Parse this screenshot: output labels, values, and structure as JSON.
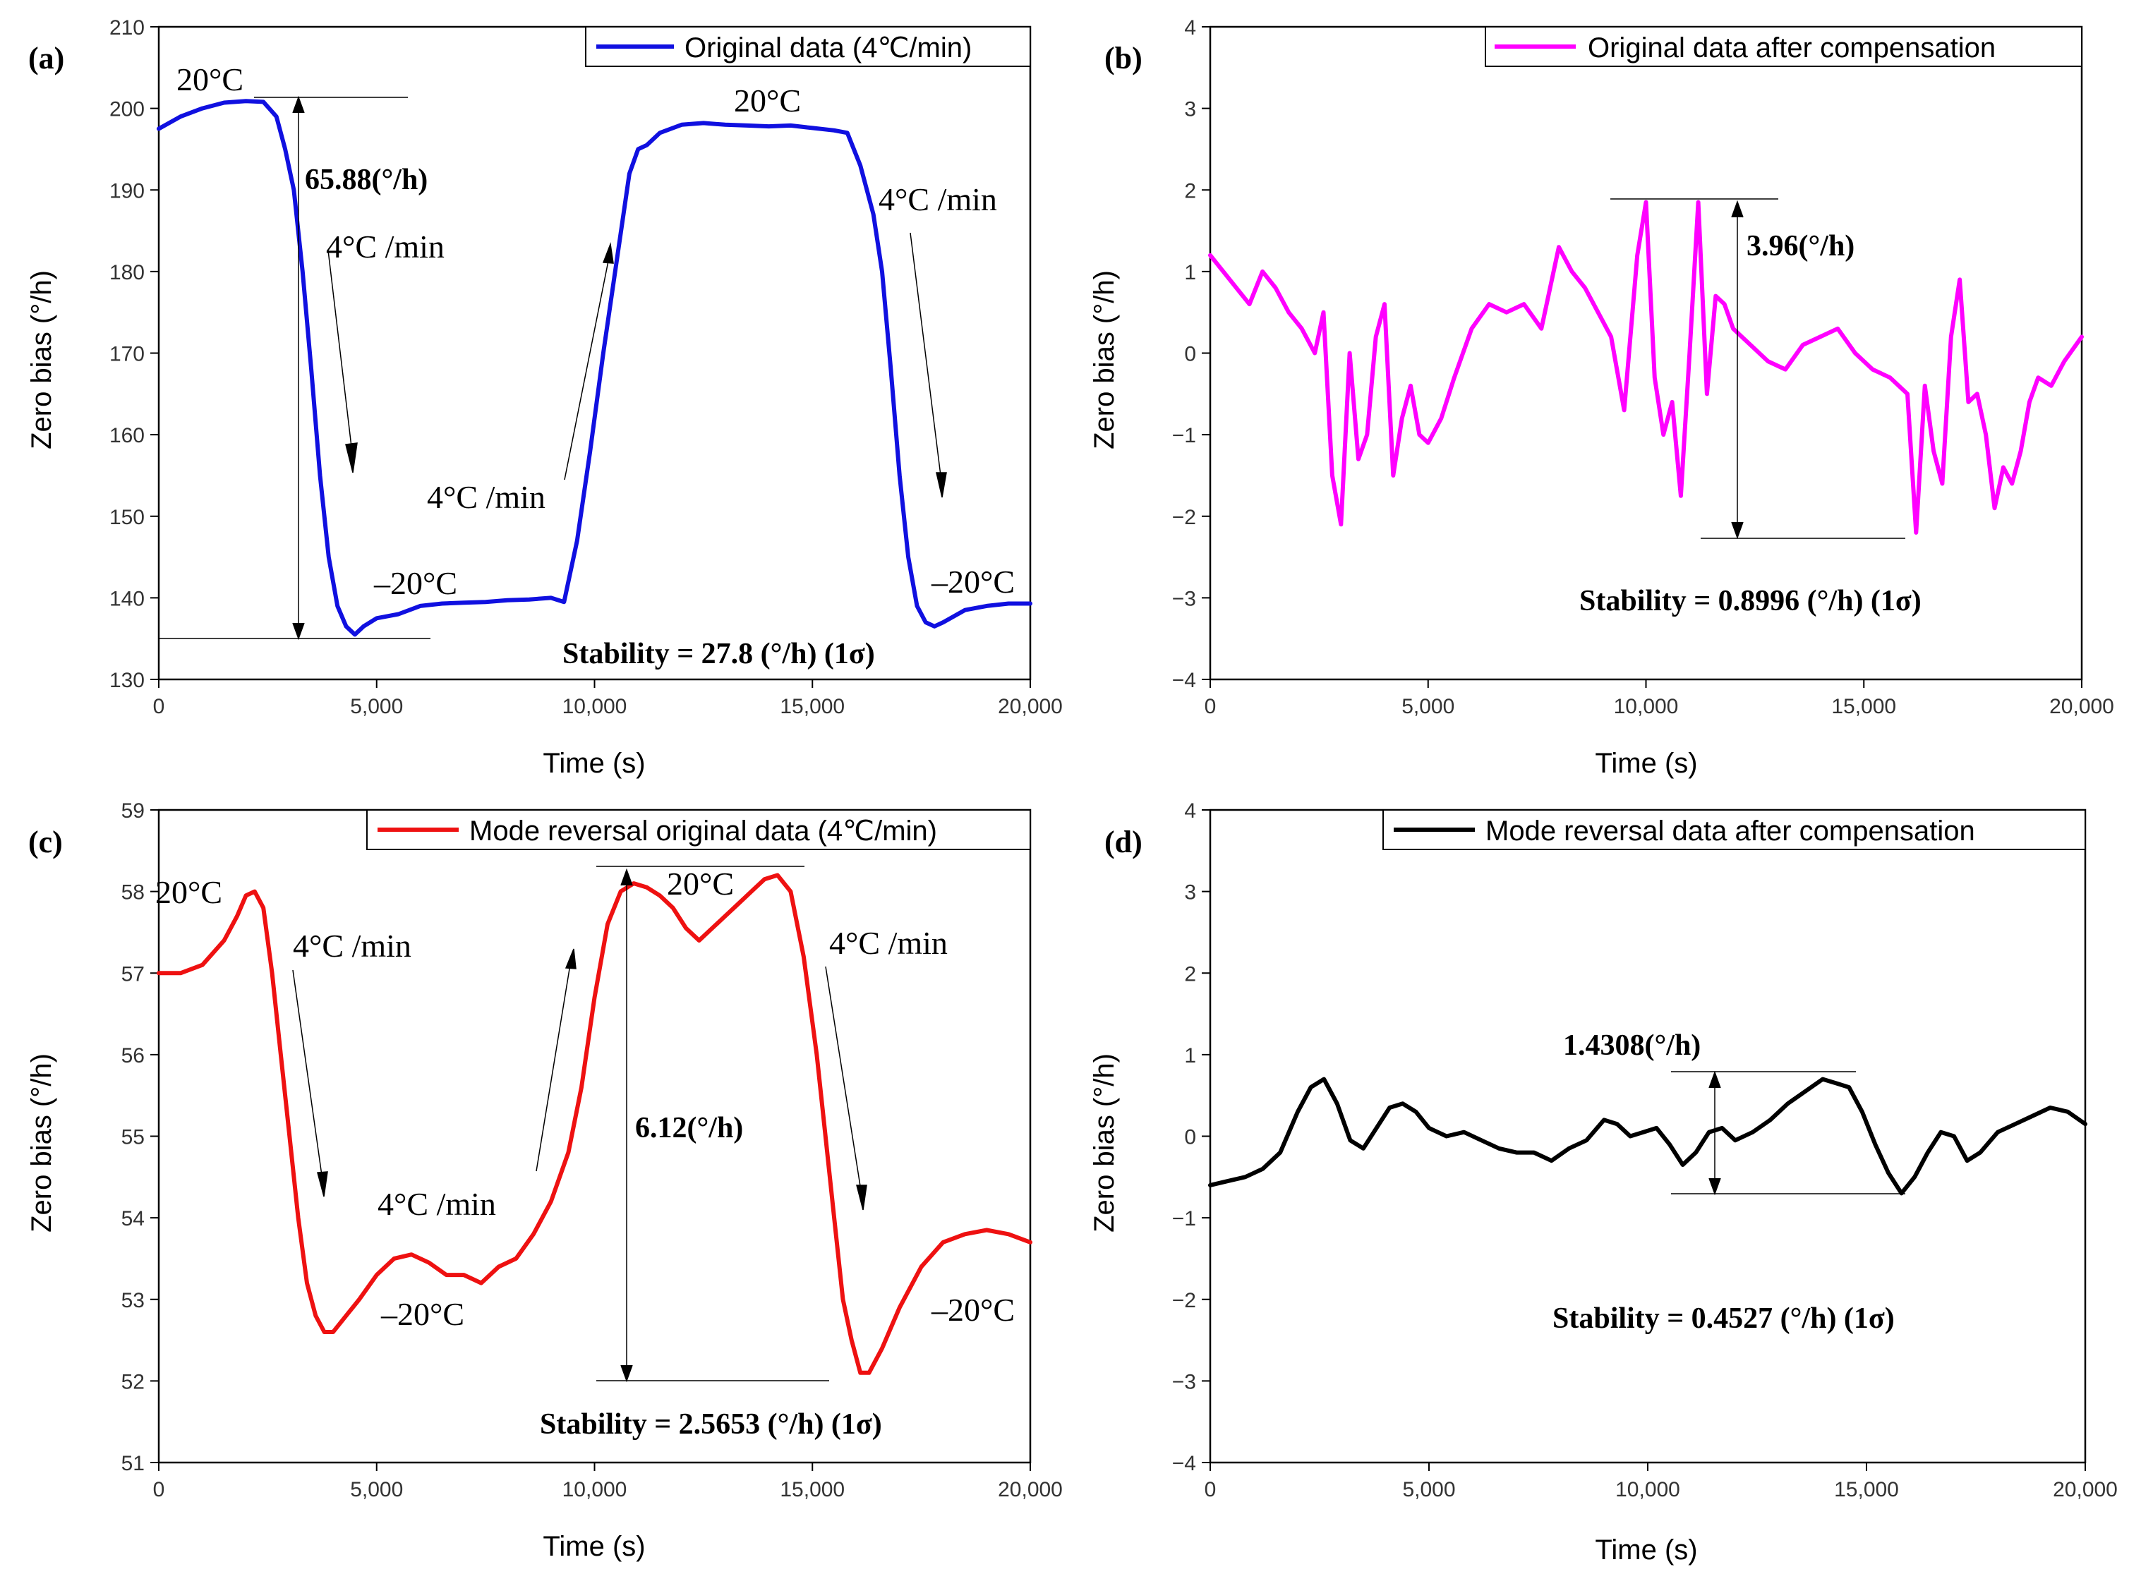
{
  "chart_data": [
    {
      "id": "a",
      "type": "line",
      "panel_label": "(a)",
      "xlabel": "Time (s)",
      "ylabel": "Zero bias (°/h)",
      "xlim": [
        0,
        20000
      ],
      "ylim": [
        130,
        210
      ],
      "xticks": [
        0,
        5000,
        10000,
        15000,
        20000
      ],
      "xtick_labels": [
        "0",
        "5,000",
        "10,000",
        "15,000",
        "20,000"
      ],
      "yticks": [
        130,
        140,
        150,
        160,
        170,
        180,
        190,
        200,
        210
      ],
      "ytick_labels": [
        "130",
        "140",
        "150",
        "160",
        "170",
        "180",
        "190",
        "200",
        "210"
      ],
      "color": "#1010e0",
      "legend": "Original data (4℃/min)",
      "legend_position": "top-right",
      "series": [
        {
          "name": "Original data (4℃/min)",
          "x": [
            0,
            500,
            1000,
            1500,
            2000,
            2400,
            2700,
            2900,
            3100,
            3300,
            3500,
            3700,
            3900,
            4100,
            4300,
            4500,
            4700,
            5000,
            5500,
            6000,
            6500,
            7000,
            7500,
            8000,
            8500,
            9000,
            9300,
            9600,
            9900,
            10200,
            10500,
            10800,
            11000,
            11200,
            11500,
            12000,
            12500,
            13000,
            13500,
            14000,
            14500,
            15000,
            15500,
            15800,
            16100,
            16400,
            16600,
            16800,
            17000,
            17200,
            17400,
            17600,
            17800,
            18000,
            18500,
            19000,
            19500,
            20000
          ],
          "y": [
            197.5,
            199,
            200,
            200.7,
            200.9,
            200.8,
            199,
            195,
            190,
            180,
            168,
            155,
            145,
            139,
            136.5,
            135.5,
            136.5,
            137.5,
            138,
            139,
            139.3,
            139.4,
            139.5,
            139.7,
            139.8,
            140,
            139.5,
            147,
            158,
            170,
            181,
            192,
            195,
            195.5,
            197,
            198,
            198.2,
            198,
            197.9,
            197.8,
            197.9,
            197.6,
            197.3,
            197,
            193,
            187,
            180,
            168,
            155,
            145,
            139,
            137,
            136.5,
            137,
            138.5,
            139,
            139.3,
            139.3
          ]
        }
      ],
      "annotations": [
        {
          "text": "20°C"
        },
        {
          "text": "65.88(°/h)",
          "value": 65.88
        },
        {
          "text": "4°C /min"
        },
        {
          "text": "4°C /min"
        },
        {
          "text": "–20°C"
        },
        {
          "text": "20°C"
        },
        {
          "text": "4°C /min"
        },
        {
          "text": "–20°C"
        },
        {
          "text": "Stability = 27.8 (°/h) (1σ)",
          "value": 27.8
        }
      ]
    },
    {
      "id": "b",
      "type": "line",
      "panel_label": "(b)",
      "xlabel": "Time (s)",
      "ylabel": "Zero bias (°/h)",
      "xlim": [
        0,
        20000
      ],
      "ylim": [
        -4,
        4
      ],
      "xticks": [
        0,
        5000,
        10000,
        15000,
        20000
      ],
      "xtick_labels": [
        "0",
        "5,000",
        "10,000",
        "15,000",
        "20,000"
      ],
      "yticks": [
        -4,
        -3,
        -2,
        -1,
        0,
        1,
        2,
        3,
        4
      ],
      "ytick_labels": [
        "−4",
        "−3",
        "−2",
        "−1",
        "0",
        "1",
        "2",
        "3",
        "4"
      ],
      "color": "#ff00ff",
      "legend": "Original data after compensation",
      "legend_position": "top-right",
      "series": [
        {
          "name": "Original data after compensation",
          "x": [
            0,
            300,
            600,
            900,
            1200,
            1500,
            1800,
            2100,
            2400,
            2600,
            2800,
            3000,
            3200,
            3400,
            3600,
            3800,
            4000,
            4200,
            4400,
            4600,
            4800,
            5000,
            5300,
            5600,
            6000,
            6400,
            6800,
            7200,
            7600,
            8000,
            8300,
            8600,
            8900,
            9200,
            9500,
            9800,
            10000,
            10200,
            10400,
            10600,
            10800,
            11000,
            11200,
            11400,
            11600,
            11800,
            12000,
            12400,
            12800,
            13200,
            13600,
            14000,
            14400,
            14800,
            15200,
            15600,
            16000,
            16200,
            16400,
            16600,
            16800,
            17000,
            17200,
            17400,
            17600,
            17800,
            18000,
            18200,
            18400,
            18600,
            18800,
            19000,
            19300,
            19600,
            20000
          ],
          "y": [
            1.2,
            1.0,
            0.8,
            0.6,
            1.0,
            0.8,
            0.5,
            0.3,
            0.0,
            0.5,
            -1.5,
            -2.1,
            0.0,
            -1.3,
            -1.0,
            0.2,
            0.6,
            -1.5,
            -0.8,
            -0.4,
            -1.0,
            -1.1,
            -0.8,
            -0.3,
            0.3,
            0.6,
            0.5,
            0.6,
            0.3,
            1.3,
            1.0,
            0.8,
            0.5,
            0.2,
            -0.7,
            1.2,
            1.85,
            -0.3,
            -1.0,
            -0.6,
            -1.75,
            0.0,
            1.85,
            -0.5,
            0.7,
            0.6,
            0.3,
            0.1,
            -0.1,
            -0.2,
            0.1,
            0.2,
            0.3,
            0.0,
            -0.2,
            -0.3,
            -0.5,
            -2.2,
            -0.4,
            -1.2,
            -1.6,
            0.2,
            0.9,
            -0.6,
            -0.5,
            -1.0,
            -1.9,
            -1.4,
            -1.6,
            -1.2,
            -0.6,
            -0.3,
            -0.4,
            -0.1,
            0.2
          ]
        }
      ],
      "annotations": [
        {
          "text": "3.96(°/h)",
          "value": 3.96
        },
        {
          "text": "Stability = 0.8996 (°/h) (1σ)",
          "value": 0.8996
        }
      ]
    },
    {
      "id": "c",
      "type": "line",
      "panel_label": "(c)",
      "xlabel": "Time (s)",
      "ylabel": "Zero bias (°/h)",
      "xlim": [
        0,
        20000
      ],
      "ylim": [
        51,
        59
      ],
      "xticks": [
        0,
        5000,
        10000,
        15000,
        20000
      ],
      "xtick_labels": [
        "0",
        "5,000",
        "10,000",
        "15,000",
        "20,000"
      ],
      "yticks": [
        51,
        52,
        53,
        54,
        55,
        56,
        57,
        58,
        59
      ],
      "ytick_labels": [
        "51",
        "52",
        "53",
        "54",
        "55",
        "56",
        "57",
        "58",
        "59"
      ],
      "color": "#ee1111",
      "legend": "Mode reversal original data (4℃/min)",
      "legend_position": "top-right",
      "series": [
        {
          "name": "Mode reversal original data (4℃/min)",
          "x": [
            0,
            500,
            1000,
            1500,
            1800,
            2000,
            2200,
            2400,
            2600,
            2800,
            3000,
            3200,
            3400,
            3600,
            3800,
            4000,
            4300,
            4600,
            5000,
            5400,
            5800,
            6200,
            6600,
            7000,
            7400,
            7800,
            8200,
            8600,
            9000,
            9400,
            9700,
            10000,
            10300,
            10600,
            10900,
            11200,
            11500,
            11800,
            12100,
            12400,
            12700,
            13000,
            13300,
            13600,
            13900,
            14200,
            14500,
            14800,
            15100,
            15300,
            15500,
            15700,
            15900,
            16100,
            16300,
            16600,
            17000,
            17500,
            18000,
            18500,
            19000,
            19500,
            20000
          ],
          "y": [
            57.0,
            57.0,
            57.1,
            57.4,
            57.7,
            57.95,
            58.0,
            57.8,
            57.0,
            56.0,
            55.0,
            54.0,
            53.2,
            52.8,
            52.6,
            52.6,
            52.8,
            53.0,
            53.3,
            53.5,
            53.55,
            53.45,
            53.3,
            53.3,
            53.2,
            53.4,
            53.5,
            53.8,
            54.2,
            54.8,
            55.6,
            56.7,
            57.6,
            58.0,
            58.1,
            58.05,
            57.95,
            57.8,
            57.55,
            57.4,
            57.55,
            57.7,
            57.85,
            58.0,
            58.15,
            58.2,
            58.0,
            57.2,
            56.0,
            55.0,
            54.0,
            53.0,
            52.5,
            52.1,
            52.1,
            52.4,
            52.9,
            53.4,
            53.7,
            53.8,
            53.85,
            53.8,
            53.7
          ]
        }
      ],
      "annotations": [
        {
          "text": "20°C"
        },
        {
          "text": "4°C /min"
        },
        {
          "text": "4°C /min"
        },
        {
          "text": "–20°C"
        },
        {
          "text": "20°C"
        },
        {
          "text": "6.12(°/h)",
          "value": 6.12
        },
        {
          "text": "4°C /min"
        },
        {
          "text": "–20°C"
        },
        {
          "text": "Stability = 2.5653 (°/h) (1σ)",
          "value": 2.5653
        }
      ]
    },
    {
      "id": "d",
      "type": "line",
      "panel_label": "(d)",
      "xlabel": "Time (s)",
      "ylabel": "Zero bias (°/h)",
      "xlim": [
        0,
        20000
      ],
      "ylim": [
        -4,
        4
      ],
      "xticks": [
        0,
        5000,
        10000,
        15000,
        20000
      ],
      "xtick_labels": [
        "0",
        "5,000",
        "10,000",
        "15,000",
        "20,000"
      ],
      "yticks": [
        -4,
        -3,
        -2,
        -1,
        0,
        1,
        2,
        3,
        4
      ],
      "ytick_labels": [
        "−4",
        "−3",
        "−2",
        "−1",
        "0",
        "1",
        "2",
        "3",
        "4"
      ],
      "color": "#000000",
      "legend": "Mode reversal data after compensation",
      "legend_position": "top-right",
      "series": [
        {
          "name": "Mode reversal data after compensation",
          "x": [
            0,
            400,
            800,
            1200,
            1600,
            2000,
            2300,
            2600,
            2900,
            3200,
            3500,
            3800,
            4100,
            4400,
            4700,
            5000,
            5400,
            5800,
            6200,
            6600,
            7000,
            7400,
            7800,
            8200,
            8600,
            9000,
            9300,
            9600,
            9900,
            10200,
            10500,
            10800,
            11100,
            11400,
            11700,
            12000,
            12400,
            12800,
            13200,
            13600,
            14000,
            14300,
            14600,
            14900,
            15200,
            15500,
            15800,
            16100,
            16400,
            16700,
            17000,
            17300,
            17600,
            18000,
            18400,
            18800,
            19200,
            19600,
            20000
          ],
          "y": [
            -0.6,
            -0.55,
            -0.5,
            -0.4,
            -0.2,
            0.3,
            0.6,
            0.7,
            0.4,
            -0.05,
            -0.15,
            0.1,
            0.35,
            0.4,
            0.3,
            0.1,
            0.0,
            0.05,
            -0.05,
            -0.15,
            -0.2,
            -0.2,
            -0.3,
            -0.15,
            -0.05,
            0.2,
            0.15,
            0.0,
            0.05,
            0.1,
            -0.1,
            -0.35,
            -0.2,
            0.05,
            0.1,
            -0.05,
            0.05,
            0.2,
            0.4,
            0.55,
            0.7,
            0.65,
            0.6,
            0.3,
            -0.1,
            -0.45,
            -0.7,
            -0.5,
            -0.2,
            0.05,
            0.0,
            -0.3,
            -0.2,
            0.05,
            0.15,
            0.25,
            0.35,
            0.3,
            0.15
          ]
        }
      ],
      "annotations": [
        {
          "text": "1.4308(°/h)",
          "value": 1.4308
        },
        {
          "text": "Stability = 0.4527 (°/h) (1σ)",
          "value": 0.4527
        }
      ]
    }
  ]
}
